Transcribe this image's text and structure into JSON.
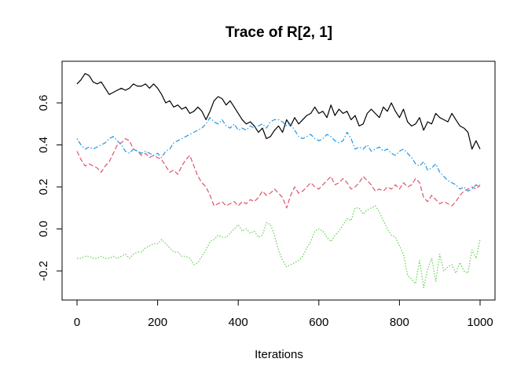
{
  "chart_data": {
    "type": "line",
    "title": "Trace of R[2, 1]",
    "xlabel": "Iterations",
    "ylabel": "",
    "xlim": [
      0,
      1000
    ],
    "ylim": [
      -0.34,
      0.77
    ],
    "x_ticks": [
      0,
      200,
      400,
      600,
      800,
      1000
    ],
    "x_tick_labels": [
      "0",
      "200",
      "400",
      "600",
      "800",
      "1000"
    ],
    "y_ticks": [
      -0.2,
      0.0,
      0.2,
      0.4,
      0.6
    ],
    "y_tick_labels": [
      "-0.2",
      "0.0",
      "0.2",
      "0.4",
      "0.6"
    ],
    "grid": false,
    "legend": "none",
    "series": [
      {
        "color": "#000000",
        "dash": "solid",
        "x": [
          0,
          10,
          20,
          30,
          40,
          50,
          60,
          70,
          80,
          90,
          100,
          110,
          120,
          130,
          140,
          150,
          160,
          170,
          180,
          190,
          200,
          210,
          220,
          230,
          240,
          250,
          260,
          270,
          280,
          290,
          300,
          310,
          320,
          330,
          340,
          350,
          360,
          370,
          380,
          390,
          400,
          410,
          420,
          430,
          440,
          450,
          460,
          470,
          480,
          490,
          500,
          510,
          520,
          530,
          540,
          550,
          560,
          570,
          580,
          590,
          600,
          610,
          620,
          630,
          640,
          650,
          660,
          670,
          680,
          690,
          700,
          710,
          720,
          730,
          740,
          750,
          760,
          770,
          780,
          790,
          800,
          810,
          820,
          830,
          840,
          850,
          860,
          870,
          880,
          890,
          900,
          910,
          920,
          930,
          940,
          950,
          960,
          970,
          980,
          990,
          1000
        ],
        "values": [
          0.69,
          0.71,
          0.74,
          0.73,
          0.7,
          0.69,
          0.7,
          0.67,
          0.64,
          0.65,
          0.66,
          0.67,
          0.66,
          0.67,
          0.69,
          0.68,
          0.68,
          0.69,
          0.67,
          0.69,
          0.67,
          0.64,
          0.6,
          0.61,
          0.58,
          0.59,
          0.57,
          0.58,
          0.55,
          0.56,
          0.58,
          0.56,
          0.52,
          0.56,
          0.61,
          0.63,
          0.62,
          0.59,
          0.61,
          0.58,
          0.55,
          0.52,
          0.5,
          0.51,
          0.49,
          0.46,
          0.48,
          0.43,
          0.44,
          0.47,
          0.49,
          0.46,
          0.52,
          0.49,
          0.53,
          0.5,
          0.52,
          0.54,
          0.55,
          0.58,
          0.55,
          0.56,
          0.53,
          0.59,
          0.54,
          0.57,
          0.55,
          0.56,
          0.52,
          0.54,
          0.49,
          0.5,
          0.55,
          0.57,
          0.55,
          0.53,
          0.58,
          0.56,
          0.6,
          0.56,
          0.53,
          0.57,
          0.51,
          0.49,
          0.5,
          0.53,
          0.47,
          0.51,
          0.5,
          0.55,
          0.53,
          0.52,
          0.51,
          0.55,
          0.52,
          0.49,
          0.48,
          0.46,
          0.38,
          0.42,
          0.38
        ]
      },
      {
        "color": "#DF536B",
        "dash": "dashed",
        "x": [
          0,
          10,
          20,
          30,
          40,
          50,
          60,
          70,
          80,
          90,
          100,
          110,
          120,
          130,
          140,
          150,
          160,
          170,
          180,
          190,
          200,
          210,
          220,
          230,
          240,
          250,
          260,
          270,
          280,
          290,
          300,
          310,
          320,
          330,
          340,
          350,
          360,
          370,
          380,
          390,
          400,
          410,
          420,
          430,
          440,
          450,
          460,
          470,
          480,
          490,
          500,
          510,
          520,
          530,
          540,
          550,
          560,
          570,
          580,
          590,
          600,
          610,
          620,
          630,
          640,
          650,
          660,
          670,
          680,
          690,
          700,
          710,
          720,
          730,
          740,
          750,
          760,
          770,
          780,
          790,
          800,
          810,
          820,
          830,
          840,
          850,
          860,
          870,
          880,
          890,
          900,
          910,
          920,
          930,
          940,
          950,
          960,
          970,
          980,
          990,
          1000
        ],
        "values": [
          0.37,
          0.33,
          0.3,
          0.31,
          0.3,
          0.29,
          0.27,
          0.3,
          0.32,
          0.36,
          0.4,
          0.41,
          0.43,
          0.42,
          0.38,
          0.37,
          0.35,
          0.36,
          0.34,
          0.35,
          0.34,
          0.33,
          0.3,
          0.27,
          0.28,
          0.26,
          0.3,
          0.33,
          0.35,
          0.3,
          0.25,
          0.22,
          0.2,
          0.16,
          0.11,
          0.12,
          0.13,
          0.11,
          0.12,
          0.13,
          0.11,
          0.13,
          0.12,
          0.14,
          0.13,
          0.15,
          0.18,
          0.16,
          0.17,
          0.19,
          0.17,
          0.15,
          0.1,
          0.16,
          0.2,
          0.17,
          0.18,
          0.2,
          0.22,
          0.2,
          0.19,
          0.21,
          0.23,
          0.25,
          0.21,
          0.22,
          0.24,
          0.22,
          0.19,
          0.2,
          0.22,
          0.25,
          0.23,
          0.21,
          0.18,
          0.19,
          0.18,
          0.2,
          0.19,
          0.21,
          0.19,
          0.22,
          0.2,
          0.21,
          0.24,
          0.22,
          0.15,
          0.13,
          0.16,
          0.14,
          0.12,
          0.13,
          0.12,
          0.11,
          0.13,
          0.16,
          0.18,
          0.19,
          0.2,
          0.19,
          0.21
        ]
      },
      {
        "color": "#61D04F",
        "dash": "dotted",
        "x": [
          0,
          10,
          20,
          30,
          40,
          50,
          60,
          70,
          80,
          90,
          100,
          110,
          120,
          130,
          140,
          150,
          160,
          170,
          180,
          190,
          200,
          210,
          220,
          230,
          240,
          250,
          260,
          270,
          280,
          290,
          300,
          310,
          320,
          330,
          340,
          350,
          360,
          370,
          380,
          390,
          400,
          410,
          420,
          430,
          440,
          450,
          460,
          470,
          480,
          490,
          500,
          510,
          520,
          530,
          540,
          550,
          560,
          570,
          580,
          590,
          600,
          610,
          620,
          630,
          640,
          650,
          660,
          670,
          680,
          690,
          700,
          710,
          720,
          730,
          740,
          750,
          760,
          770,
          780,
          790,
          800,
          810,
          820,
          830,
          840,
          850,
          860,
          870,
          880,
          890,
          900,
          910,
          920,
          930,
          940,
          950,
          960,
          970,
          980,
          990,
          1000
        ],
        "values": [
          -0.14,
          -0.14,
          -0.13,
          -0.13,
          -0.14,
          -0.14,
          -0.13,
          -0.14,
          -0.14,
          -0.13,
          -0.14,
          -0.13,
          -0.12,
          -0.14,
          -0.12,
          -0.11,
          -0.11,
          -0.09,
          -0.08,
          -0.07,
          -0.07,
          -0.05,
          -0.07,
          -0.09,
          -0.11,
          -0.11,
          -0.13,
          -0.13,
          -0.14,
          -0.17,
          -0.16,
          -0.13,
          -0.1,
          -0.06,
          -0.05,
          -0.03,
          -0.04,
          -0.04,
          -0.02,
          0.0,
          0.02,
          -0.01,
          0.0,
          -0.02,
          -0.01,
          -0.04,
          -0.03,
          0.03,
          0.02,
          -0.03,
          -0.1,
          -0.15,
          -0.18,
          -0.17,
          -0.16,
          -0.15,
          -0.13,
          -0.09,
          -0.06,
          -0.01,
          0.0,
          -0.01,
          -0.04,
          -0.06,
          -0.03,
          -0.01,
          0.02,
          0.05,
          0.04,
          0.1,
          0.1,
          0.07,
          0.09,
          0.1,
          0.11,
          0.08,
          0.04,
          0.0,
          -0.03,
          -0.04,
          -0.08,
          -0.12,
          -0.22,
          -0.24,
          -0.26,
          -0.15,
          -0.28,
          -0.19,
          -0.14,
          -0.25,
          -0.12,
          -0.2,
          -0.18,
          -0.17,
          -0.21,
          -0.16,
          -0.2,
          -0.21,
          -0.1,
          -0.14,
          -0.05
        ]
      },
      {
        "color": "#2297E6",
        "dash": "dashdot",
        "x": [
          0,
          10,
          20,
          30,
          40,
          50,
          60,
          70,
          80,
          90,
          100,
          110,
          120,
          130,
          140,
          150,
          160,
          170,
          180,
          190,
          200,
          210,
          220,
          230,
          240,
          250,
          260,
          270,
          280,
          290,
          300,
          310,
          320,
          330,
          340,
          350,
          360,
          370,
          380,
          390,
          400,
          410,
          420,
          430,
          440,
          450,
          460,
          470,
          480,
          490,
          500,
          510,
          520,
          530,
          540,
          550,
          560,
          570,
          580,
          590,
          600,
          610,
          620,
          630,
          640,
          650,
          660,
          670,
          680,
          690,
          700,
          710,
          720,
          730,
          740,
          750,
          760,
          770,
          780,
          790,
          800,
          810,
          820,
          830,
          840,
          850,
          860,
          870,
          880,
          890,
          900,
          910,
          920,
          930,
          940,
          950,
          960,
          970,
          980,
          990,
          1000
        ],
        "values": [
          0.43,
          0.4,
          0.38,
          0.39,
          0.38,
          0.39,
          0.4,
          0.41,
          0.43,
          0.44,
          0.42,
          0.4,
          0.37,
          0.36,
          0.38,
          0.37,
          0.36,
          0.37,
          0.36,
          0.35,
          0.36,
          0.34,
          0.37,
          0.38,
          0.41,
          0.42,
          0.43,
          0.44,
          0.45,
          0.46,
          0.47,
          0.48,
          0.5,
          0.53,
          0.51,
          0.5,
          0.52,
          0.49,
          0.48,
          0.5,
          0.47,
          0.48,
          0.47,
          0.49,
          0.48,
          0.49,
          0.5,
          0.48,
          0.51,
          0.52,
          0.52,
          0.51,
          0.49,
          0.5,
          0.47,
          0.44,
          0.43,
          0.44,
          0.45,
          0.43,
          0.42,
          0.43,
          0.45,
          0.44,
          0.42,
          0.41,
          0.42,
          0.46,
          0.43,
          0.38,
          0.39,
          0.38,
          0.4,
          0.37,
          0.38,
          0.39,
          0.37,
          0.38,
          0.36,
          0.35,
          0.37,
          0.38,
          0.36,
          0.34,
          0.31,
          0.3,
          0.32,
          0.28,
          0.29,
          0.31,
          0.27,
          0.25,
          0.23,
          0.22,
          0.21,
          0.19,
          0.2,
          0.18,
          0.19,
          0.21,
          0.2
        ]
      }
    ]
  }
}
